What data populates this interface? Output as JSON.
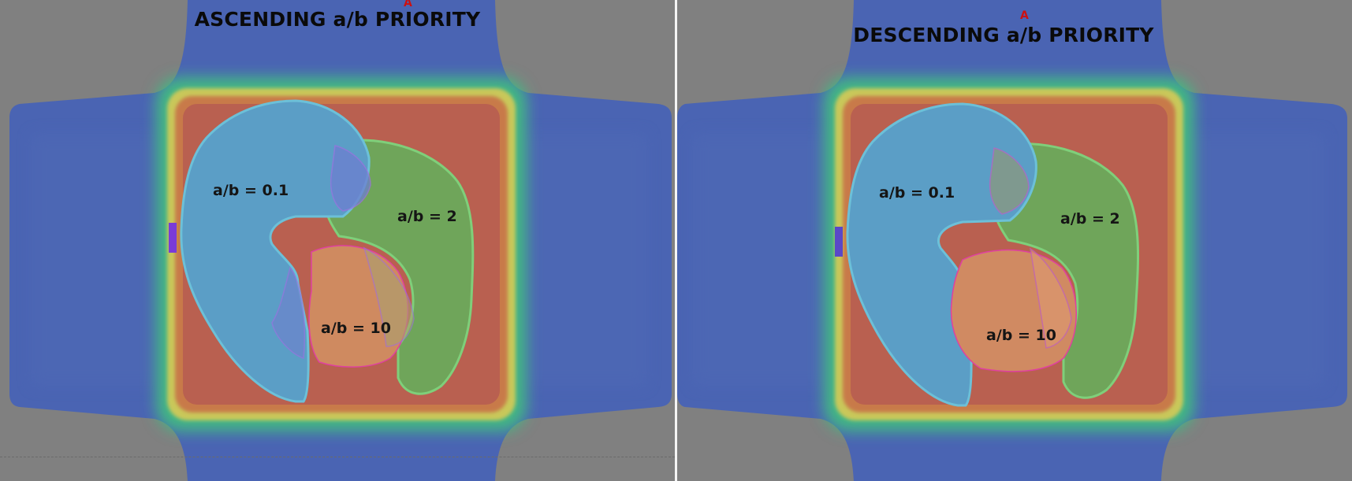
{
  "panels": [
    {
      "title": "ASCENDING a/b PRIORITY",
      "marker": "A",
      "labels": {
        "low": "a/b = 0.1",
        "mid": "a/b = 2",
        "high": "a/b = 10"
      }
    },
    {
      "title": "DESCENDING a/b PRIORITY",
      "marker": "A",
      "labels": {
        "low": "a/b = 0.1",
        "mid": "a/b = 2",
        "high": "a/b = 10"
      }
    }
  ]
}
